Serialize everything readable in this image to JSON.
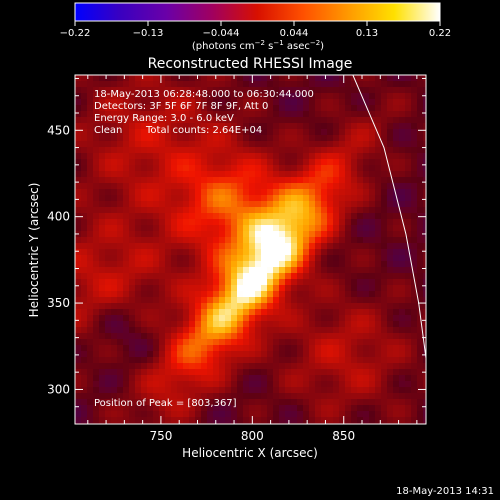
{
  "chart_data": {
    "type": "heatmap",
    "title": "Reconstructed RHESSI Image",
    "xlabel": "Heliocentric X (arcsec)",
    "ylabel": "Heliocentric Y (arcsec)",
    "xlim": [
      703,
      895
    ],
    "ylim": [
      280,
      482
    ],
    "xticks": [
      750,
      800,
      850
    ],
    "yticks": [
      300,
      350,
      400,
      450
    ],
    "colorbar": {
      "label_prefix": "(photons cm",
      "label_exp1": "−2",
      "label_mid": " s",
      "label_exp2": "−1",
      "label_mid2": " asec",
      "label_exp3": "−2",
      "label_suffix": ")",
      "range": [
        -0.22,
        0.22
      ],
      "ticks": [
        "−0.22",
        "−0.13",
        "−0.044",
        "0.044",
        "0.13",
        "0.22"
      ],
      "colors": [
        "#0000ff",
        "#3a00c0",
        "#6a00a8",
        "#a00060",
        "#d81000",
        "#ff5000",
        "#ff9a00",
        "#ffe000",
        "#ffffff"
      ]
    },
    "annotations": [
      "18-May-2013 06:28:48.000 to 06:30:44.000",
      "Detectors: 3F 5F 6F 7F 8F 9F, Att 0",
      "Energy Range: 3.0 - 6.0 keV",
      "Clean",
      "Total counts: 2.64E+04"
    ],
    "peak_text": "Position of Peak = [803,367]",
    "peak": [
      803,
      367
    ],
    "limb_curve": [
      [
        855,
        482
      ],
      [
        872,
        440
      ],
      [
        884,
        390
      ],
      [
        891,
        350
      ],
      [
        895,
        318
      ]
    ]
  },
  "footer": {
    "timestamp": "18-May-2013 14:31"
  }
}
